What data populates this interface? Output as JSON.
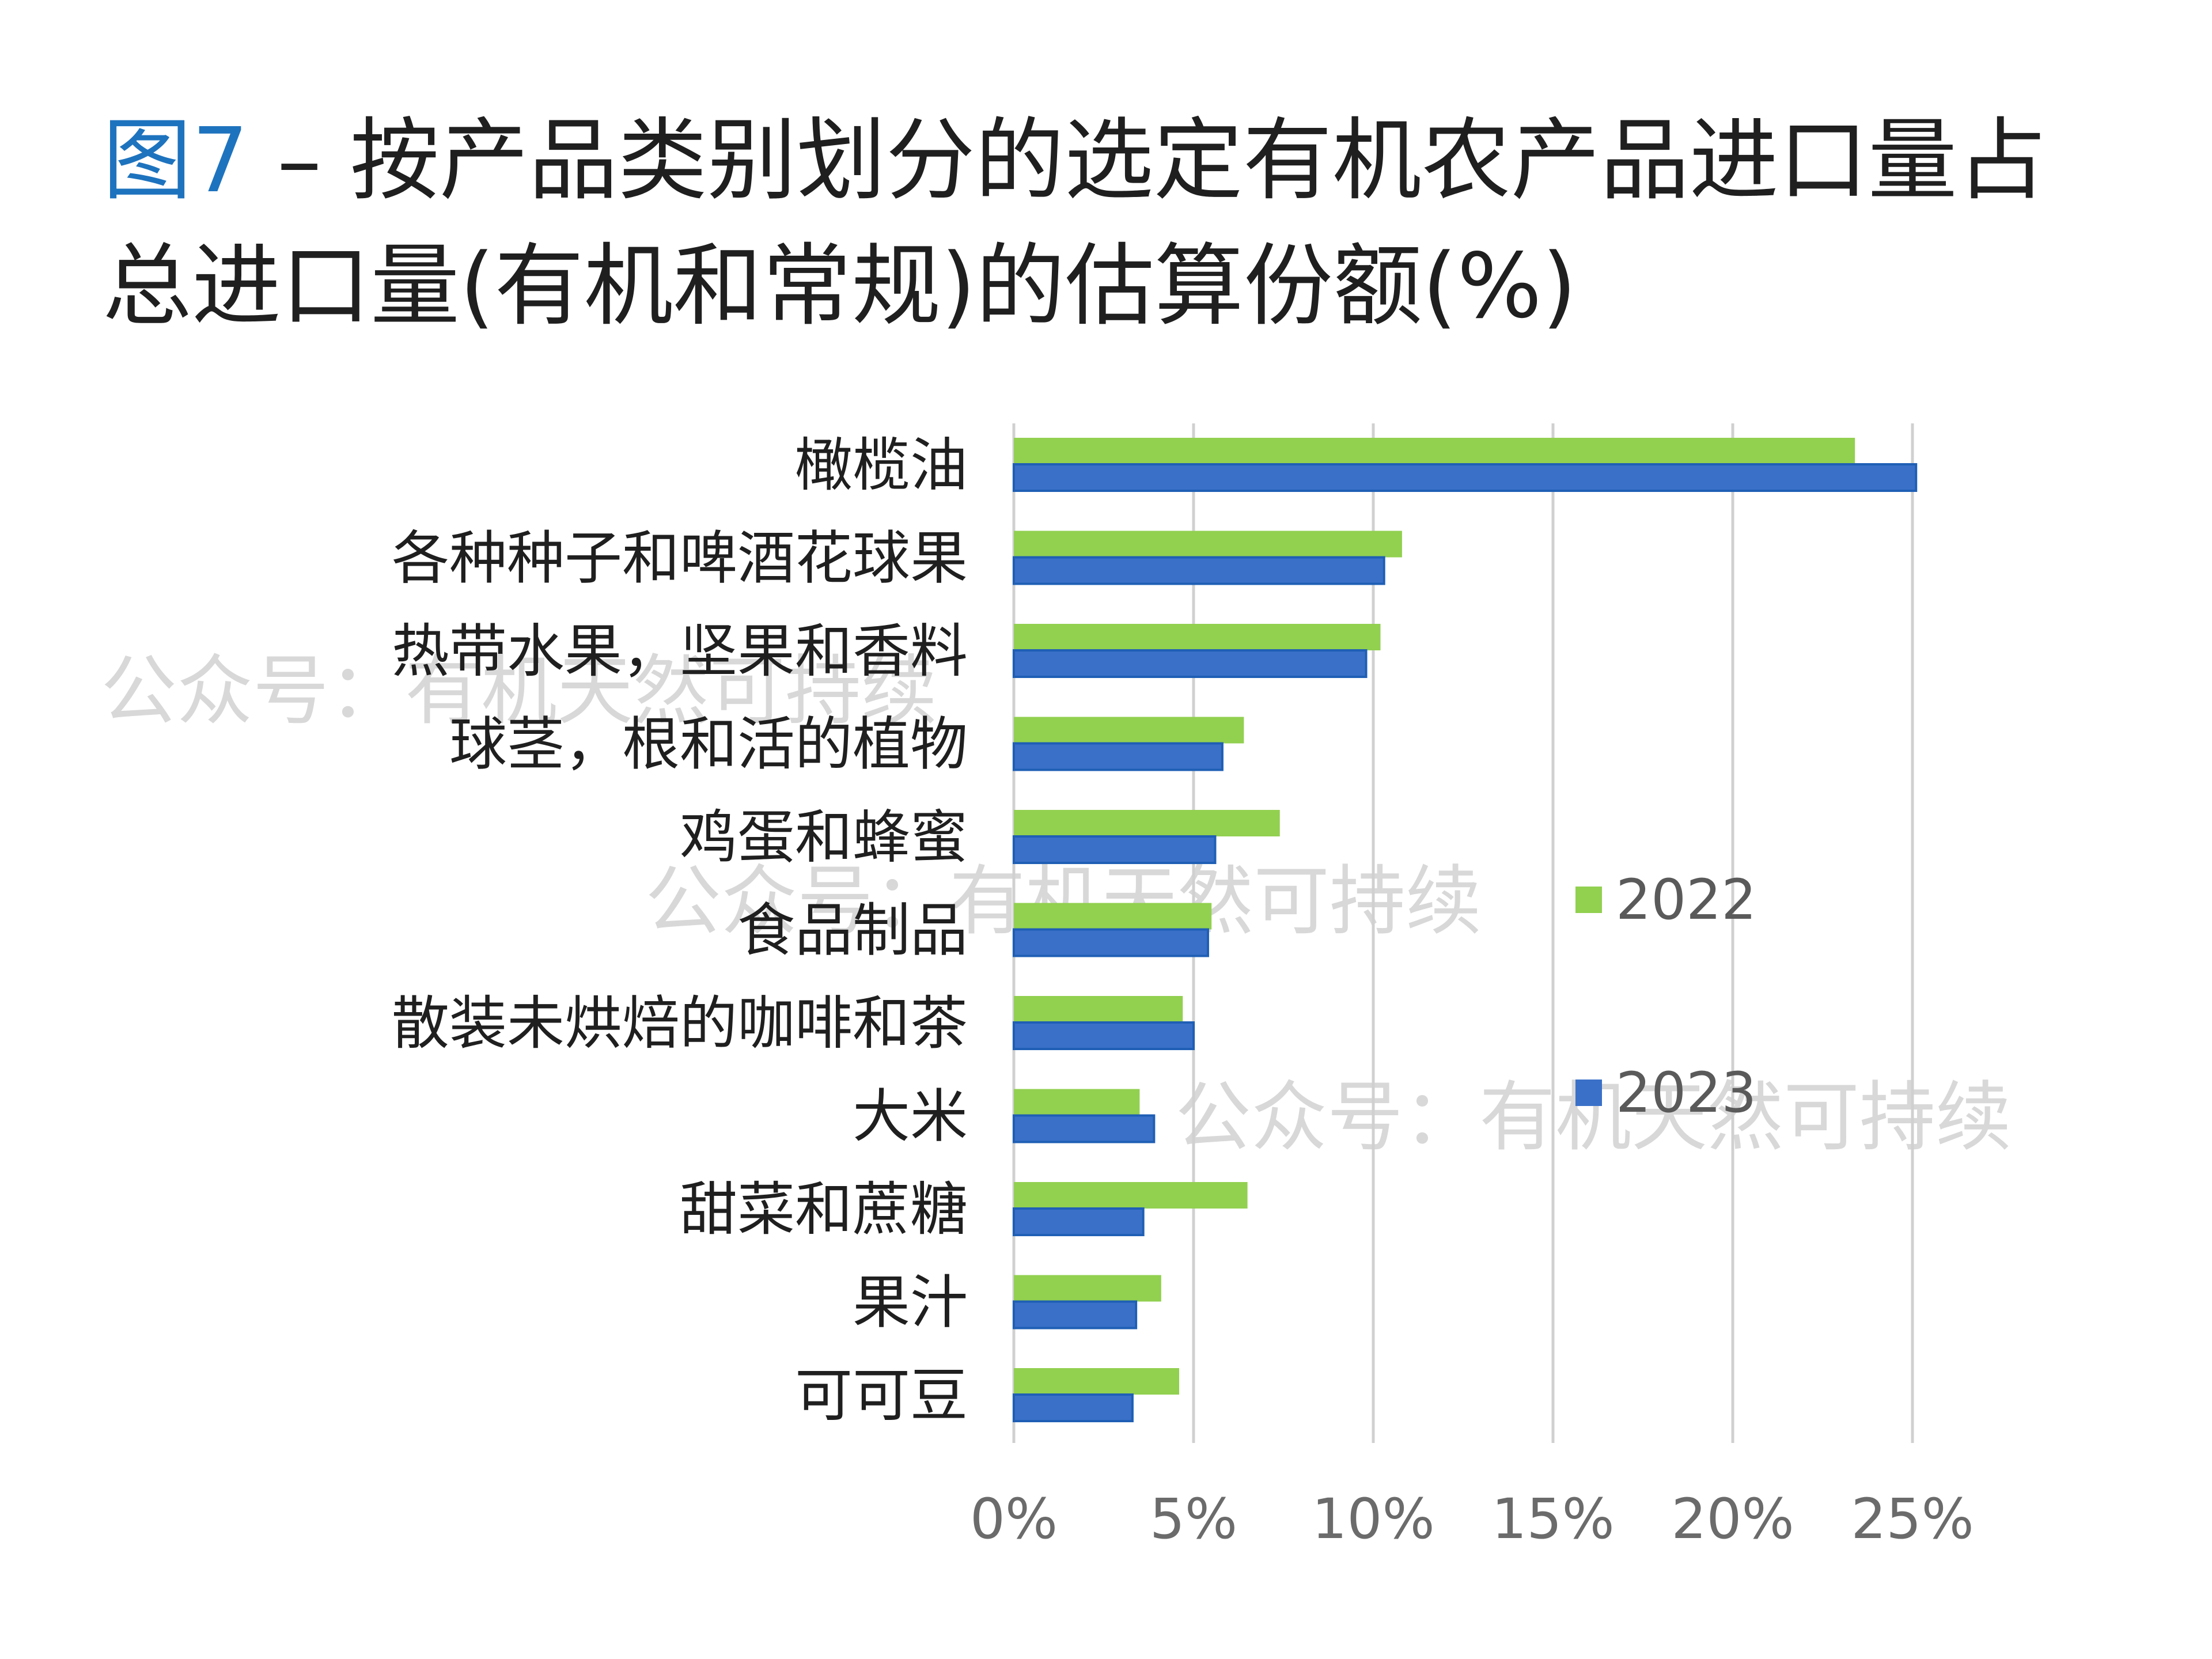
{
  "title": {
    "figure_label": "图7",
    "text": " – 按产品类别划分的选定有机农产品进口量占总进口量(有机和常规)的估算份额(%)"
  },
  "watermark": "公众号：有机天然可持续",
  "colors": {
    "series_2022": "#92d050",
    "series_2023": "#3a70c8",
    "series_2023_edge": "#1f5fb5",
    "grid": "#d0d0d0"
  },
  "chart_data": {
    "type": "bar",
    "orientation": "horizontal",
    "categories": [
      "橄榄油",
      "各种种子和啤酒花球果",
      "热带水果，坚果和香料",
      "球茎，根和活的植物",
      "鸡蛋和蜂蜜",
      "食品制品",
      "散装未烘焙的咖啡和茶",
      "大米",
      "甜菜和蔗糖",
      "果汁",
      "可可豆"
    ],
    "series": [
      {
        "name": "2022",
        "values": [
          23.4,
          10.8,
          10.2,
          6.4,
          7.4,
          5.5,
          4.7,
          3.5,
          6.5,
          4.1,
          4.6
        ]
      },
      {
        "name": "2023",
        "values": [
          25.1,
          10.3,
          9.8,
          5.8,
          5.6,
          5.4,
          5.0,
          3.9,
          3.6,
          3.4,
          3.3
        ]
      }
    ],
    "xlim": [
      0,
      25
    ],
    "ticks": [
      "0%",
      "5%",
      "10%",
      "15%",
      "20%",
      "25%"
    ],
    "tick_values": [
      0,
      5,
      10,
      15,
      20,
      25
    ],
    "grid": true,
    "legend_position": "right"
  }
}
